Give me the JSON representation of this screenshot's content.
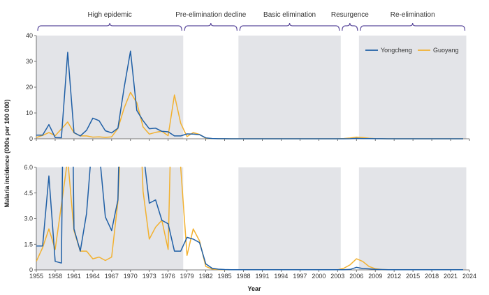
{
  "colors": {
    "yongcheng": "#1f5fa6",
    "guoyang": "#f2b130",
    "phase_shade": "#e3e4e8",
    "bracket": "#5b4a9c",
    "axis": "#555555"
  },
  "phases": [
    {
      "label": "High epidemic",
      "start": 1955,
      "end": 1978.4,
      "shaded": true
    },
    {
      "label": "Pre-elimination decline",
      "start": 1978.4,
      "end": 1987.2,
      "shaded": false
    },
    {
      "label": "Basic elimination",
      "start": 1987.2,
      "end": 2003.5,
      "shaded": true
    },
    {
      "label": "Resurgence",
      "start": 2003.5,
      "end": 2006.4,
      "shaded": false
    },
    {
      "label": "Re-elimination",
      "start": 2006.4,
      "end": 2023.5,
      "shaded": true
    }
  ],
  "chart_data": {
    "type": "line",
    "xlabel": "Year",
    "ylabel": "Malaria incidence (000s per 100 000)",
    "xlim": [
      1955,
      2024
    ],
    "x_ticks": [
      "1955",
      "1958",
      "1961",
      "1964",
      "1967",
      "1970",
      "1973",
      "1976",
      "1979",
      "1982",
      "1985",
      "1988",
      "1991",
      "1994",
      "1997",
      "2000",
      "2003",
      "2006",
      "2009",
      "2012",
      "2015",
      "2018",
      "2021",
      "2024"
    ],
    "legend": {
      "position": "top-right",
      "entries": [
        "Yongcheng",
        "Guoyang"
      ]
    },
    "panels": [
      {
        "ylim": [
          0,
          40
        ],
        "y_ticks": [
          "0",
          "10",
          "20",
          "30",
          "40"
        ],
        "y_values": [
          0,
          10,
          20,
          30,
          40
        ]
      },
      {
        "ylim": [
          0,
          6
        ],
        "y_ticks": [
          "0",
          "1.5",
          "3.0",
          "4.5",
          "6.0"
        ],
        "y_values": [
          0,
          1.5,
          3,
          4.5,
          6
        ]
      }
    ],
    "x": [
      1955,
      1956,
      1957,
      1958,
      1959,
      1960,
      1961,
      1962,
      1963,
      1964,
      1965,
      1966,
      1967,
      1968,
      1969,
      1970,
      1971,
      1972,
      1973,
      1974,
      1975,
      1976,
      1977,
      1978,
      1979,
      1980,
      1981,
      1982,
      1983,
      1984,
      1985,
      1986,
      1987,
      1988,
      1989,
      1990,
      1991,
      1992,
      1993,
      1994,
      1995,
      1996,
      1997,
      1998,
      1999,
      2000,
      2001,
      2002,
      2003,
      2004,
      2005,
      2006,
      2007,
      2008,
      2009,
      2010,
      2011,
      2012,
      2013,
      2014,
      2015,
      2016,
      2017,
      2018,
      2019,
      2020,
      2021,
      2022,
      2023
    ],
    "series": [
      {
        "name": "Yongcheng",
        "values": [
          1.4,
          1.4,
          5.5,
          0.5,
          0.4,
          33.5,
          2.4,
          1.1,
          3.3,
          8.0,
          7.0,
          3.1,
          2.3,
          4.1,
          20.0,
          34.0,
          11.0,
          7.0,
          3.9,
          4.1,
          2.9,
          2.7,
          1.1,
          1.1,
          1.9,
          1.8,
          1.6,
          0.35,
          0.1,
          0.04,
          0.02,
          0.01,
          0.01,
          0.01,
          0.01,
          0.01,
          0.01,
          0.01,
          0.01,
          0.01,
          0.01,
          0.01,
          0.01,
          0.01,
          0.01,
          0.01,
          0.01,
          0.01,
          0.01,
          0.01,
          0.03,
          0.15,
          0.08,
          0.06,
          0.03,
          0.02,
          0.01,
          0.01,
          0.01,
          0.01,
          0.01,
          0.01,
          0.01,
          0.01,
          0.01,
          0.01,
          0.01,
          0.01,
          0.01
        ]
      },
      {
        "name": "Guoyang",
        "values": [
          0.5,
          1.3,
          2.4,
          1.2,
          3.8,
          6.5,
          2.3,
          1.1,
          1.1,
          0.65,
          0.75,
          0.55,
          0.75,
          4.0,
          12.0,
          18.0,
          14.0,
          4.6,
          1.8,
          2.5,
          2.9,
          1.2,
          17.0,
          6.0,
          0.85,
          2.4,
          1.7,
          0.2,
          0.05,
          0.02,
          0.01,
          0.01,
          0.01,
          0.01,
          0.01,
          0.01,
          0.01,
          0.01,
          0.01,
          0.01,
          0.01,
          0.01,
          0.01,
          0.01,
          0.01,
          0.01,
          0.01,
          0.01,
          0.01,
          0.1,
          0.3,
          0.65,
          0.5,
          0.2,
          0.07,
          0.02,
          0.01,
          0.01,
          0.01,
          0.01,
          0.01,
          0.01,
          0.01,
          0.01,
          0.01,
          0.01,
          0.01,
          0.01,
          0.01
        ]
      }
    ]
  }
}
